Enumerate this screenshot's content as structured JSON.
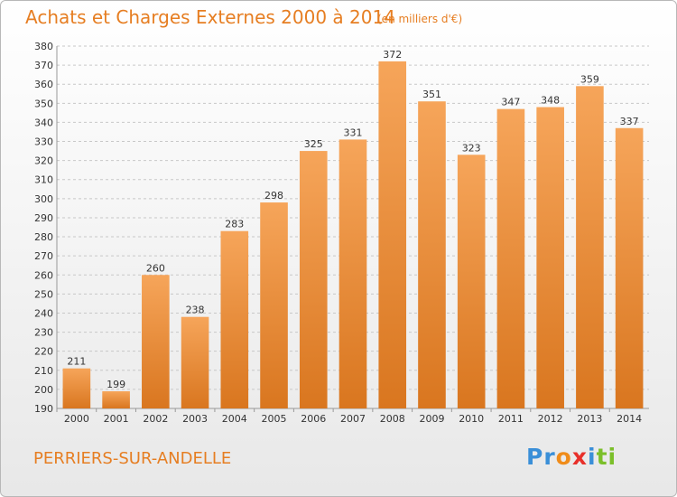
{
  "title": "Achats et Charges Externes 2000 à 2014",
  "subtitle": "(en milliers d'€)",
  "location": "PERRIERS-SUR-ANDELLE",
  "logo": {
    "text": "Proxiti",
    "letters": [
      "P",
      "r",
      "o",
      "x",
      "i",
      "t",
      "i"
    ],
    "colors": [
      "#3a8fd8",
      "#3a8fd8",
      "#f08c1a",
      "#e8302a",
      "#3a8fd8",
      "#7bbf2a",
      "#7bbf2a"
    ]
  },
  "colors": {
    "accent": "#e67e22",
    "bar_top": "#f6a55a",
    "bar_bottom": "#d9761f",
    "grid": "#c8c8c8"
  },
  "chart_data": {
    "type": "bar",
    "title": "Achats et Charges Externes 2000 à 2014",
    "subtitle": "(en milliers d'€)",
    "xlabel": "",
    "ylabel": "",
    "categories": [
      "2000",
      "2001",
      "2002",
      "2003",
      "2004",
      "2005",
      "2006",
      "2007",
      "2008",
      "2009",
      "2010",
      "2011",
      "2012",
      "2013",
      "2014"
    ],
    "values": [
      211,
      199,
      260,
      238,
      283,
      298,
      325,
      331,
      372,
      351,
      323,
      347,
      348,
      359,
      337
    ],
    "ylim": [
      190,
      380
    ],
    "ytick_step": 10,
    "grid": true,
    "legend": "none"
  }
}
